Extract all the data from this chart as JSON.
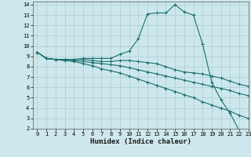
{
  "xlabel": "Humidex (Indice chaleur)",
  "ylabel": "",
  "xlim": [
    -0.5,
    23
  ],
  "ylim": [
    2,
    14.3
  ],
  "xticks": [
    0,
    1,
    2,
    3,
    4,
    5,
    6,
    7,
    8,
    9,
    10,
    11,
    12,
    13,
    14,
    15,
    16,
    17,
    18,
    19,
    20,
    21,
    22,
    23
  ],
  "yticks": [
    2,
    3,
    4,
    5,
    6,
    7,
    8,
    9,
    10,
    11,
    12,
    13,
    14
  ],
  "bg_color": "#cde8ec",
  "grid_color": "#aacdd4",
  "line_color": "#1a7070",
  "lines": [
    {
      "x": [
        0,
        1,
        2,
        3,
        4,
        5,
        6,
        7,
        8,
        9,
        10,
        11,
        12,
        13,
        14,
        15,
        16,
        17,
        18,
        19,
        20,
        21,
        22,
        23
      ],
      "y": [
        9.4,
        8.8,
        8.7,
        8.7,
        8.7,
        8.8,
        8.8,
        8.8,
        8.8,
        9.2,
        9.5,
        10.7,
        13.1,
        13.2,
        13.2,
        14.0,
        13.3,
        13.0,
        10.2,
        6.5,
        4.8,
        3.5,
        1.8,
        1.6
      ]
    },
    {
      "x": [
        0,
        1,
        2,
        3,
        4,
        5,
        6,
        7,
        8,
        9,
        10,
        11,
        12,
        13,
        14,
        15,
        16,
        17,
        18,
        19,
        20,
        21,
        22,
        23
      ],
      "y": [
        9.4,
        8.8,
        8.7,
        8.7,
        8.7,
        8.7,
        8.6,
        8.5,
        8.5,
        8.6,
        8.6,
        8.5,
        8.4,
        8.3,
        8.0,
        7.7,
        7.5,
        7.4,
        7.3,
        7.1,
        6.9,
        6.6,
        6.3,
        6.1
      ]
    },
    {
      "x": [
        0,
        1,
        2,
        3,
        4,
        5,
        6,
        7,
        8,
        9,
        10,
        11,
        12,
        13,
        14,
        15,
        16,
        17,
        18,
        19,
        20,
        21,
        22,
        23
      ],
      "y": [
        9.4,
        8.8,
        8.7,
        8.6,
        8.6,
        8.5,
        8.4,
        8.3,
        8.2,
        8.1,
        7.9,
        7.7,
        7.5,
        7.3,
        7.1,
        6.9,
        6.7,
        6.5,
        6.3,
        6.1,
        5.9,
        5.7,
        5.4,
        5.2
      ]
    },
    {
      "x": [
        0,
        1,
        2,
        3,
        4,
        5,
        6,
        7,
        8,
        9,
        10,
        11,
        12,
        13,
        14,
        15,
        16,
        17,
        18,
        19,
        20,
        21,
        22,
        23
      ],
      "y": [
        9.4,
        8.8,
        8.7,
        8.6,
        8.5,
        8.3,
        8.1,
        7.8,
        7.6,
        7.4,
        7.1,
        6.8,
        6.5,
        6.2,
        5.9,
        5.6,
        5.3,
        5.0,
        4.6,
        4.3,
        4.0,
        3.7,
        3.3,
        3.0
      ]
    }
  ]
}
